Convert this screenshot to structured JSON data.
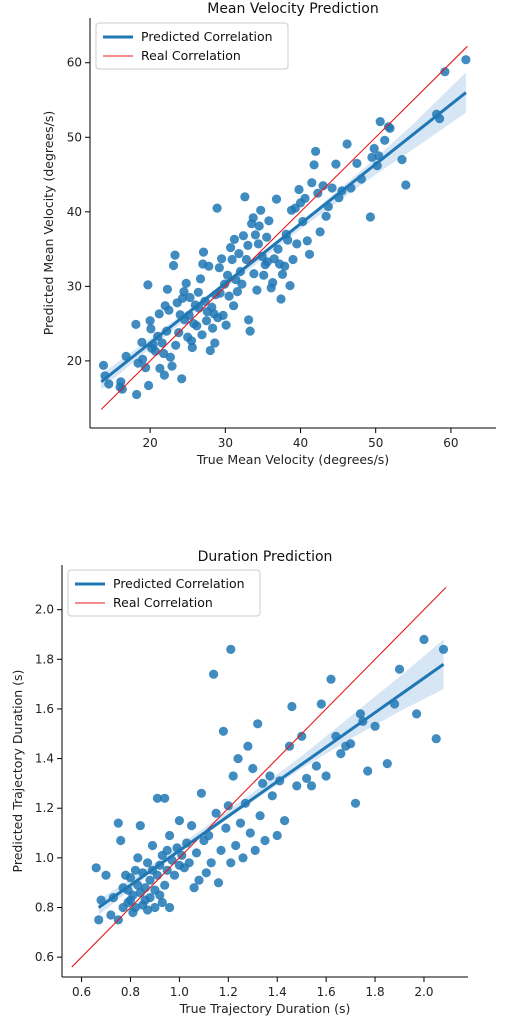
{
  "colors": {
    "points": "#1f77b4",
    "fit_line": "#1f77b4",
    "ci_band": "#c6dbef",
    "real_line": "#e41a1c",
    "axis": "#000000"
  },
  "chart_data": [
    {
      "type": "scatter",
      "title": "Mean Velocity Prediction",
      "xlabel": "True Mean Velocity (degrees/s)",
      "ylabel": "Predicted Mean Velocity (degrees/s)",
      "xlim": [
        12,
        66
      ],
      "ylim": [
        11,
        66
      ],
      "xticks": [
        20,
        30,
        40,
        50,
        60
      ],
      "yticks": [
        20,
        30,
        40,
        50,
        60
      ],
      "tick_format": 0,
      "legend_position": "top-left",
      "legend": [
        "Predicted Correlation",
        "Real Correlation"
      ],
      "fit_line": {
        "x": [
          13.5,
          62.0
        ],
        "y": [
          17.2,
          56.0
        ],
        "ci": [
          [
            13.5,
            16.2,
            18.2
          ],
          [
            20,
            21.7,
            23.0
          ],
          [
            30,
            29.7,
            30.6
          ],
          [
            40,
            37.7,
            38.6
          ],
          [
            50,
            45.0,
            47.2
          ],
          [
            55,
            48.4,
            51.8
          ],
          [
            62,
            53.3,
            58.7
          ]
        ]
      },
      "real_line": {
        "x": [
          13.5,
          62.2
        ],
        "y": [
          13.5,
          62.2
        ]
      },
      "points": [
        [
          13.8,
          19.4
        ],
        [
          14.0,
          18.0
        ],
        [
          14.5,
          16.9
        ],
        [
          16.0,
          16.5
        ],
        [
          16.1,
          17.2
        ],
        [
          16.3,
          16.2
        ],
        [
          16.8,
          20.6
        ],
        [
          18.1,
          24.9
        ],
        [
          18.2,
          15.5
        ],
        [
          18.4,
          19.7
        ],
        [
          18.9,
          22.5
        ],
        [
          19.0,
          20.2
        ],
        [
          19.4,
          19.1
        ],
        [
          19.7,
          30.2
        ],
        [
          19.8,
          16.7
        ],
        [
          20.0,
          25.4
        ],
        [
          20.1,
          24.3
        ],
        [
          20.2,
          21.7
        ],
        [
          20.4,
          22.2
        ],
        [
          20.7,
          21.3
        ],
        [
          21.0,
          23.3
        ],
        [
          21.2,
          26.3
        ],
        [
          21.3,
          19.0
        ],
        [
          21.6,
          22.4
        ],
        [
          21.8,
          21.0
        ],
        [
          21.9,
          18.1
        ],
        [
          22.0,
          27.4
        ],
        [
          22.2,
          24.0
        ],
        [
          22.3,
          29.6
        ],
        [
          22.5,
          26.8
        ],
        [
          22.7,
          20.5
        ],
        [
          22.9,
          19.3
        ],
        [
          23.1,
          32.8
        ],
        [
          23.3,
          34.2
        ],
        [
          23.4,
          22.1
        ],
        [
          23.6,
          27.8
        ],
        [
          23.8,
          23.8
        ],
        [
          24.0,
          26.2
        ],
        [
          24.2,
          17.6
        ],
        [
          24.3,
          28.4
        ],
        [
          24.5,
          29.3
        ],
        [
          24.6,
          25.5
        ],
        [
          24.8,
          30.4
        ],
        [
          25.0,
          23.2
        ],
        [
          25.2,
          26.1
        ],
        [
          25.3,
          28.5
        ],
        [
          25.5,
          22.7
        ],
        [
          25.6,
          21.8
        ],
        [
          25.8,
          25.0
        ],
        [
          26.0,
          27.5
        ],
        [
          26.2,
          24.7
        ],
        [
          26.4,
          29.2
        ],
        [
          26.5,
          27.1
        ],
        [
          26.7,
          31.0
        ],
        [
          26.9,
          23.5
        ],
        [
          27.0,
          33.0
        ],
        [
          27.1,
          34.6
        ],
        [
          27.3,
          28.0
        ],
        [
          27.5,
          25.4
        ],
        [
          27.6,
          26.6
        ],
        [
          27.8,
          32.7
        ],
        [
          28.0,
          21.4
        ],
        [
          28.2,
          27.2
        ],
        [
          28.3,
          24.4
        ],
        [
          28.5,
          26.3
        ],
        [
          28.6,
          22.4
        ],
        [
          28.7,
          28.9
        ],
        [
          28.9,
          40.5
        ],
        [
          29.0,
          25.8
        ],
        [
          29.2,
          32.5
        ],
        [
          29.3,
          29.1
        ],
        [
          29.5,
          33.7
        ],
        [
          29.7,
          26.1
        ],
        [
          29.9,
          30.3
        ],
        [
          30.1,
          24.8
        ],
        [
          30.3,
          31.5
        ],
        [
          30.5,
          28.7
        ],
        [
          30.7,
          35.2
        ],
        [
          30.9,
          33.6
        ],
        [
          31.1,
          27.4
        ],
        [
          31.2,
          36.3
        ],
        [
          31.4,
          30.9
        ],
        [
          31.6,
          29.3
        ],
        [
          31.8,
          34.4
        ],
        [
          32.0,
          32.0
        ],
        [
          32.2,
          30.3
        ],
        [
          32.4,
          36.8
        ],
        [
          32.6,
          42.0
        ],
        [
          32.8,
          33.6
        ],
        [
          33.0,
          35.5
        ],
        [
          33.1,
          25.5
        ],
        [
          33.3,
          24.0
        ],
        [
          33.5,
          38.4
        ],
        [
          33.7,
          39.2
        ],
        [
          33.8,
          31.7
        ],
        [
          34.0,
          36.9
        ],
        [
          34.2,
          29.5
        ],
        [
          34.4,
          35.7
        ],
        [
          34.5,
          38.1
        ],
        [
          34.7,
          40.2
        ],
        [
          34.9,
          34.0
        ],
        [
          35.1,
          31.5
        ],
        [
          35.3,
          32.9
        ],
        [
          35.5,
          36.6
        ],
        [
          35.6,
          33.3
        ],
        [
          35.8,
          38.8
        ],
        [
          36.1,
          29.8
        ],
        [
          36.3,
          30.5
        ],
        [
          36.5,
          33.7
        ],
        [
          36.8,
          41.7
        ],
        [
          37.0,
          35.0
        ],
        [
          37.2,
          33.0
        ],
        [
          37.4,
          28.3
        ],
        [
          37.6,
          31.6
        ],
        [
          37.9,
          32.7
        ],
        [
          38.1,
          37.0
        ],
        [
          38.3,
          36.2
        ],
        [
          38.6,
          30.1
        ],
        [
          38.8,
          40.2
        ],
        [
          39.0,
          33.6
        ],
        [
          39.3,
          40.5
        ],
        [
          39.5,
          35.7
        ],
        [
          39.8,
          43.0
        ],
        [
          40.0,
          41.2
        ],
        [
          40.3,
          38.7
        ],
        [
          40.6,
          41.8
        ],
        [
          40.9,
          36.1
        ],
        [
          41.2,
          34.3
        ],
        [
          41.5,
          43.9
        ],
        [
          41.8,
          46.3
        ],
        [
          42.0,
          48.1
        ],
        [
          42.3,
          42.5
        ],
        [
          42.6,
          37.3
        ],
        [
          43.0,
          43.5
        ],
        [
          43.4,
          39.4
        ],
        [
          43.7,
          40.7
        ],
        [
          44.2,
          43.2
        ],
        [
          44.7,
          46.4
        ],
        [
          45.1,
          41.9
        ],
        [
          45.5,
          42.8
        ],
        [
          46.2,
          49.1
        ],
        [
          46.7,
          43.2
        ],
        [
          47.5,
          46.5
        ],
        [
          48.1,
          44.4
        ],
        [
          49.3,
          39.3
        ],
        [
          49.5,
          47.3
        ],
        [
          49.8,
          48.5
        ],
        [
          50.2,
          46.2
        ],
        [
          50.4,
          47.5
        ],
        [
          50.6,
          52.1
        ],
        [
          51.2,
          49.6
        ],
        [
          51.7,
          51.4
        ],
        [
          51.9,
          51.2
        ],
        [
          53.5,
          47.0
        ],
        [
          54.0,
          43.6
        ],
        [
          58.1,
          53.1
        ],
        [
          58.5,
          52.5
        ],
        [
          59.2,
          58.8
        ],
        [
          62.0,
          60.4
        ]
      ]
    },
    {
      "type": "scatter",
      "title": "Duration Prediction",
      "xlabel": "True Trajectory Duration (s)",
      "ylabel": "Predicted Trajectory Duration (s)",
      "xlim": [
        0.52,
        2.18
      ],
      "ylim": [
        0.52,
        2.18
      ],
      "xticks": [
        0.6,
        0.8,
        1.0,
        1.2,
        1.4,
        1.6,
        1.8,
        2.0
      ],
      "yticks": [
        0.6,
        0.8,
        1.0,
        1.2,
        1.4,
        1.6,
        1.8,
        2.0
      ],
      "tick_format": 1,
      "legend_position": "top-left",
      "legend": [
        "Predicted Correlation",
        "Real Correlation"
      ],
      "fit_line": {
        "x": [
          0.67,
          2.08
        ],
        "y": [
          0.8,
          1.78
        ],
        "ci": [
          [
            0.67,
            0.77,
            0.83
          ],
          [
            0.9,
            0.95,
            0.98
          ],
          [
            1.2,
            1.16,
            1.19
          ],
          [
            1.5,
            1.36,
            1.41
          ],
          [
            1.7,
            1.48,
            1.57
          ],
          [
            1.9,
            1.59,
            1.73
          ],
          [
            2.08,
            1.68,
            1.88
          ]
        ]
      },
      "real_line": {
        "x": [
          0.56,
          2.09
        ],
        "y": [
          0.56,
          2.09
        ]
      },
      "points": [
        [
          0.66,
          0.96
        ],
        [
          0.67,
          0.75
        ],
        [
          0.68,
          0.83
        ],
        [
          0.7,
          0.93
        ],
        [
          0.72,
          0.77
        ],
        [
          0.73,
          0.84
        ],
        [
          0.75,
          0.75
        ],
        [
          0.75,
          1.14
        ],
        [
          0.76,
          1.07
        ],
        [
          0.77,
          0.88
        ],
        [
          0.77,
          0.8
        ],
        [
          0.78,
          0.93
        ],
        [
          0.79,
          0.82
        ],
        [
          0.79,
          0.87
        ],
        [
          0.8,
          0.83
        ],
        [
          0.8,
          0.92
        ],
        [
          0.81,
          0.78
        ],
        [
          0.81,
          0.85
        ],
        [
          0.82,
          0.95
        ],
        [
          0.82,
          0.8
        ],
        [
          0.83,
          0.89
        ],
        [
          0.83,
          1.0
        ],
        [
          0.84,
          1.13
        ],
        [
          0.84,
          0.86
        ],
        [
          0.85,
          0.81
        ],
        [
          0.85,
          0.94
        ],
        [
          0.86,
          0.83
        ],
        [
          0.86,
          0.88
        ],
        [
          0.87,
          0.98
        ],
        [
          0.87,
          0.79
        ],
        [
          0.88,
          0.91
        ],
        [
          0.88,
          0.84
        ],
        [
          0.89,
          1.05
        ],
        [
          0.89,
          0.95
        ],
        [
          0.9,
          0.8
        ],
        [
          0.9,
          0.87
        ],
        [
          0.91,
          1.24
        ],
        [
          0.91,
          0.93
        ],
        [
          0.92,
          0.85
        ],
        [
          0.92,
          0.97
        ],
        [
          0.93,
          1.01
        ],
        [
          0.93,
          0.82
        ],
        [
          0.94,
          1.24
        ],
        [
          0.94,
          0.89
        ],
        [
          0.95,
          0.95
        ],
        [
          0.95,
          1.03
        ],
        [
          0.96,
          0.8
        ],
        [
          0.96,
          1.09
        ],
        [
          0.97,
          0.99
        ],
        [
          0.98,
          0.93
        ],
        [
          0.99,
          1.04
        ],
        [
          1.0,
          0.97
        ],
        [
          1.0,
          1.15
        ],
        [
          1.01,
          1.01
        ],
        [
          1.02,
          0.96
        ],
        [
          1.03,
          1.06
        ],
        [
          1.04,
          0.98
        ],
        [
          1.05,
          1.13
        ],
        [
          1.06,
          0.88
        ],
        [
          1.07,
          1.02
        ],
        [
          1.08,
          0.91
        ],
        [
          1.09,
          1.26
        ],
        [
          1.1,
          1.07
        ],
        [
          1.11,
          0.94
        ],
        [
          1.12,
          1.09
        ],
        [
          1.13,
          0.98
        ],
        [
          1.14,
          1.74
        ],
        [
          1.15,
          1.18
        ],
        [
          1.16,
          0.9
        ],
        [
          1.17,
          1.03
        ],
        [
          1.18,
          1.51
        ],
        [
          1.19,
          1.12
        ],
        [
          1.2,
          1.21
        ],
        [
          1.21,
          0.98
        ],
        [
          1.21,
          1.84
        ],
        [
          1.22,
          1.33
        ],
        [
          1.23,
          1.05
        ],
        [
          1.24,
          1.4
        ],
        [
          1.25,
          1.14
        ],
        [
          1.26,
          1.0
        ],
        [
          1.27,
          1.22
        ],
        [
          1.28,
          1.45
        ],
        [
          1.29,
          1.1
        ],
        [
          1.3,
          1.36
        ],
        [
          1.31,
          1.03
        ],
        [
          1.32,
          1.54
        ],
        [
          1.33,
          1.17
        ],
        [
          1.34,
          1.3
        ],
        [
          1.35,
          1.07
        ],
        [
          1.37,
          1.33
        ],
        [
          1.38,
          1.25
        ],
        [
          1.4,
          1.09
        ],
        [
          1.41,
          1.31
        ],
        [
          1.43,
          1.15
        ],
        [
          1.45,
          1.45
        ],
        [
          1.46,
          1.61
        ],
        [
          1.48,
          1.29
        ],
        [
          1.5,
          1.49
        ],
        [
          1.52,
          1.32
        ],
        [
          1.54,
          1.29
        ],
        [
          1.56,
          1.37
        ],
        [
          1.58,
          1.62
        ],
        [
          1.6,
          1.33
        ],
        [
          1.62,
          1.72
        ],
        [
          1.64,
          1.49
        ],
        [
          1.66,
          1.42
        ],
        [
          1.68,
          1.45
        ],
        [
          1.7,
          1.46
        ],
        [
          1.72,
          1.22
        ],
        [
          1.74,
          1.58
        ],
        [
          1.75,
          1.55
        ],
        [
          1.77,
          1.35
        ],
        [
          1.8,
          1.53
        ],
        [
          1.85,
          1.38
        ],
        [
          1.88,
          1.62
        ],
        [
          1.9,
          1.76
        ],
        [
          1.97,
          1.58
        ],
        [
          2.0,
          1.88
        ],
        [
          2.05,
          1.48
        ],
        [
          2.08,
          1.84
        ]
      ]
    }
  ]
}
